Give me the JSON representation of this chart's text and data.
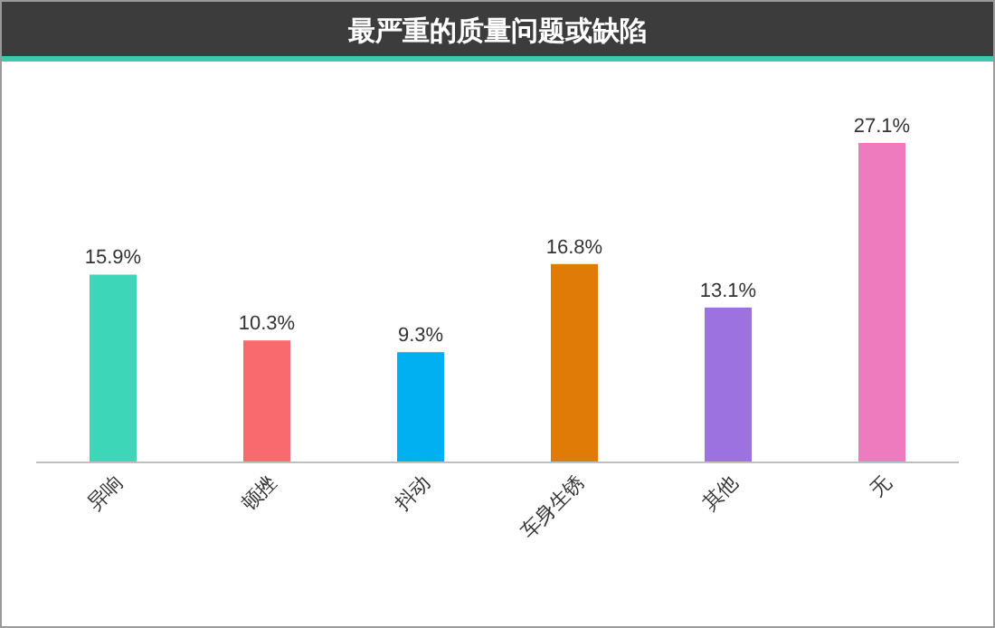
{
  "chart_data": {
    "type": "bar",
    "title": "最严重的质量问题或缺陷",
    "categories": [
      "异响",
      "顿挫",
      "抖动",
      "车身生锈",
      "其他",
      "无"
    ],
    "values": [
      15.9,
      10.3,
      9.3,
      16.8,
      13.1,
      27.1
    ],
    "colors": [
      "#3dd6b9",
      "#f96a6e",
      "#00b0f0",
      "#e07b08",
      "#9b72e0",
      "#ef7bbf"
    ],
    "value_labels": [
      "15.9%",
      "10.3%",
      "9.3%",
      "16.8%",
      "13.1%",
      "27.1%"
    ]
  }
}
